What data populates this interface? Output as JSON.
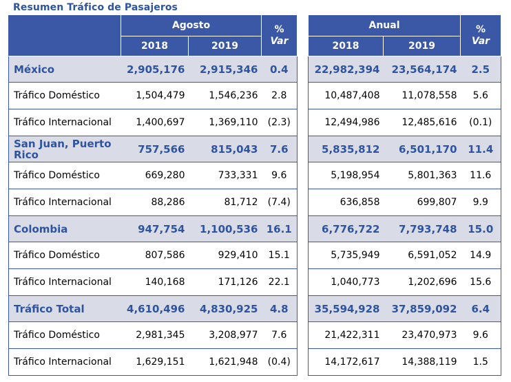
{
  "title": "Resumen Tráfico de Pasajeros",
  "header": {
    "agosto": "Agosto",
    "anual": "Anual",
    "pct": "%",
    "var": "Var",
    "y2018": "2018",
    "y2019": "2019"
  },
  "rows": [
    {
      "label": "México",
      "section": true,
      "ag2018": "2,905,176",
      "ag2019": "2,915,346",
      "agvar": "0.4",
      "an2018": "22,982,394",
      "an2019": "23,564,174",
      "anvar": "2.5"
    },
    {
      "label": "Tráfico Doméstico",
      "section": false,
      "ag2018": "1,504,479",
      "ag2019": "1,546,236",
      "agvar": "2.8",
      "an2018": "10,487,408",
      "an2019": "11,078,558",
      "anvar": "5.6"
    },
    {
      "label": "Tráfico Internacional",
      "section": false,
      "ag2018": "1,400,697",
      "ag2019": "1,369,110",
      "agvar": "(2.3)",
      "an2018": "12,494,986",
      "an2019": "12,485,616",
      "anvar": "(0.1)"
    },
    {
      "label": "San Juan, Puerto Rico",
      "section": true,
      "ag2018": "757,566",
      "ag2019": "815,043",
      "agvar": "7.6",
      "an2018": "5,835,812",
      "an2019": "6,501,170",
      "anvar": "11.4"
    },
    {
      "label": "Tráfico Doméstico",
      "section": false,
      "ag2018": "669,280",
      "ag2019": "733,331",
      "agvar": "9.6",
      "an2018": "5,198,954",
      "an2019": "5,801,363",
      "anvar": "11.6"
    },
    {
      "label": "Tráfico Internacional",
      "section": false,
      "ag2018": "88,286",
      "ag2019": "81,712",
      "agvar": "(7.4)",
      "an2018": "636,858",
      "an2019": "699,807",
      "anvar": "9.9"
    },
    {
      "label": "Colombia",
      "section": true,
      "ag2018": "947,754",
      "ag2019": "1,100,536",
      "agvar": "16.1",
      "an2018": "6,776,722",
      "an2019": "7,793,748",
      "anvar": "15.0"
    },
    {
      "label": "Tráfico Doméstico",
      "section": false,
      "ag2018": "807,586",
      "ag2019": "929,410",
      "agvar": "15.1",
      "an2018": "5,735,949",
      "an2019": "6,591,052",
      "anvar": "14.9"
    },
    {
      "label": "Tráfico Internacional",
      "section": false,
      "ag2018": "140,168",
      "ag2019": "171,126",
      "agvar": "22.1",
      "an2018": "1,040,773",
      "an2019": "1,202,696",
      "anvar": "15.6"
    },
    {
      "label": "Tráfico Total",
      "section": true,
      "ag2018": "4,610,496",
      "ag2019": "4,830,925",
      "agvar": "4.8",
      "an2018": "35,594,928",
      "an2019": "37,859,092",
      "anvar": "6.4"
    },
    {
      "label": "Tráfico Doméstico",
      "section": false,
      "ag2018": "2,981,345",
      "ag2019": "3,208,977",
      "agvar": "7.6",
      "an2018": "21,422,311",
      "an2019": "23,470,973",
      "anvar": "9.6"
    },
    {
      "label": "Tráfico Internacional",
      "section": false,
      "ag2018": "1,629,151",
      "ag2019": "1,621,948",
      "agvar": "(0.4)",
      "an2018": "14,172,617",
      "an2019": "14,388,119",
      "anvar": "1.5"
    }
  ]
}
